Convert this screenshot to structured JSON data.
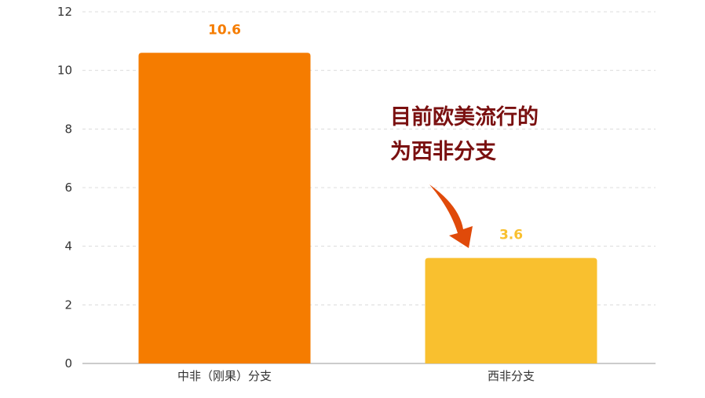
{
  "chart_data": {
    "type": "bar",
    "categories": [
      "中非（刚果）分支",
      "西非分支"
    ],
    "values": [
      10.6,
      3.6
    ],
    "data_labels": [
      "10.6",
      "3.6"
    ],
    "bar_colors": [
      "#f57c00",
      "#f9c02f"
    ],
    "label_colors": [
      "#f57c00",
      "#f9c02f"
    ],
    "ylim": [
      0,
      12
    ],
    "yticks": [
      "0",
      "2",
      "4",
      "6",
      "8",
      "10",
      "12"
    ],
    "grid": true,
    "title": "",
    "xlabel": "",
    "ylabel": ""
  },
  "annotation": {
    "lines": [
      "目前欧美流行的",
      "为西非分支"
    ],
    "color": "#7a1010",
    "arrow_color": "#e04a0a"
  }
}
